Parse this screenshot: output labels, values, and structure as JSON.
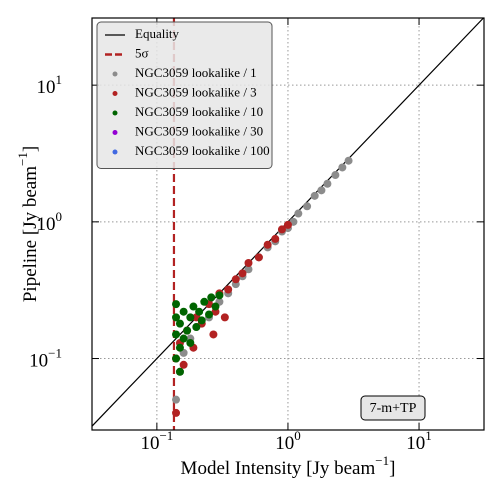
{
  "chart_data": {
    "type": "scatter",
    "xlabel": "Model Intensity [Jy beam",
    "xlabel_exponent": "−1",
    "xlabel_end": "]",
    "ylabel": "Pipeline [Jy beam",
    "ylabel_exponent": "−1",
    "ylabel_end": "]",
    "xscale": "log",
    "yscale": "log",
    "xlim": [
      0.032,
      31.3
    ],
    "ylim": [
      0.03,
      31
    ],
    "xticks": [
      {
        "value": 0.1,
        "label": "10",
        "exponent": "−1"
      },
      {
        "value": 1,
        "label": "10",
        "exponent": "0"
      },
      {
        "value": 10,
        "label": "10",
        "exponent": "1"
      }
    ],
    "yticks": [
      {
        "value": 0.1,
        "label": "10",
        "exponent": "−1"
      },
      {
        "value": 1,
        "label": "10",
        "exponent": "0"
      },
      {
        "value": 10,
        "label": "10",
        "exponent": "1"
      }
    ],
    "grid": true,
    "legend": "upper left",
    "reference_lines": [
      {
        "name": "Equality",
        "kind": "equality",
        "color": "#000000"
      },
      {
        "name": "5σ",
        "kind": "vertical",
        "x": 0.135,
        "color": "#b22222",
        "dashed": true
      }
    ],
    "series": [
      {
        "name": "NGC3059 lookalike / 1",
        "color": "#8c8c8c",
        "x": [
          0.14,
          0.15,
          0.16,
          0.18,
          0.2,
          0.25,
          0.3,
          0.4,
          0.5,
          0.6,
          0.7,
          0.8,
          1.0,
          1.2,
          1.4,
          1.6,
          1.8,
          2.0,
          2.3,
          2.6,
          2.9,
          0.35,
          0.45,
          0.9,
          1.1
        ],
        "values": [
          0.05,
          0.08,
          0.11,
          0.14,
          0.17,
          0.2,
          0.26,
          0.35,
          0.45,
          0.55,
          0.65,
          0.72,
          0.9,
          1.15,
          1.3,
          1.55,
          1.7,
          1.9,
          2.2,
          2.5,
          2.8,
          0.3,
          0.4,
          0.85,
          1.0
        ]
      },
      {
        "name": "NGC3059 lookalike / 3",
        "color": "#b22222",
        "x": [
          0.14,
          0.14,
          0.15,
          0.16,
          0.17,
          0.19,
          0.2,
          0.22,
          0.25,
          0.28,
          0.3,
          0.35,
          0.4,
          0.45,
          0.5,
          0.6,
          0.7,
          0.8,
          0.9,
          1.0,
          0.33,
          0.27
        ],
        "values": [
          0.04,
          0.1,
          0.13,
          0.09,
          0.16,
          0.12,
          0.2,
          0.18,
          0.25,
          0.22,
          0.3,
          0.32,
          0.38,
          0.42,
          0.5,
          0.55,
          0.68,
          0.75,
          0.88,
          0.95,
          0.2,
          0.15
        ]
      },
      {
        "name": "NGC3059 lookalike / 10",
        "color": "#006400",
        "x": [
          0.14,
          0.14,
          0.14,
          0.15,
          0.15,
          0.16,
          0.16,
          0.17,
          0.18,
          0.18,
          0.19,
          0.2,
          0.21,
          0.22,
          0.23,
          0.25,
          0.26,
          0.28,
          0.3,
          0.15,
          0.14
        ],
        "values": [
          0.1,
          0.15,
          0.2,
          0.12,
          0.18,
          0.14,
          0.22,
          0.16,
          0.2,
          0.13,
          0.24,
          0.17,
          0.22,
          0.19,
          0.26,
          0.21,
          0.28,
          0.24,
          0.29,
          0.08,
          0.25
        ]
      },
      {
        "name": "NGC3059 lookalike / 30",
        "color": "#9400d3",
        "x": [],
        "values": []
      },
      {
        "name": "NGC3059 lookalike / 100",
        "color": "#4169e1",
        "x": [],
        "values": []
      }
    ],
    "annotation": "7-m+TP"
  }
}
